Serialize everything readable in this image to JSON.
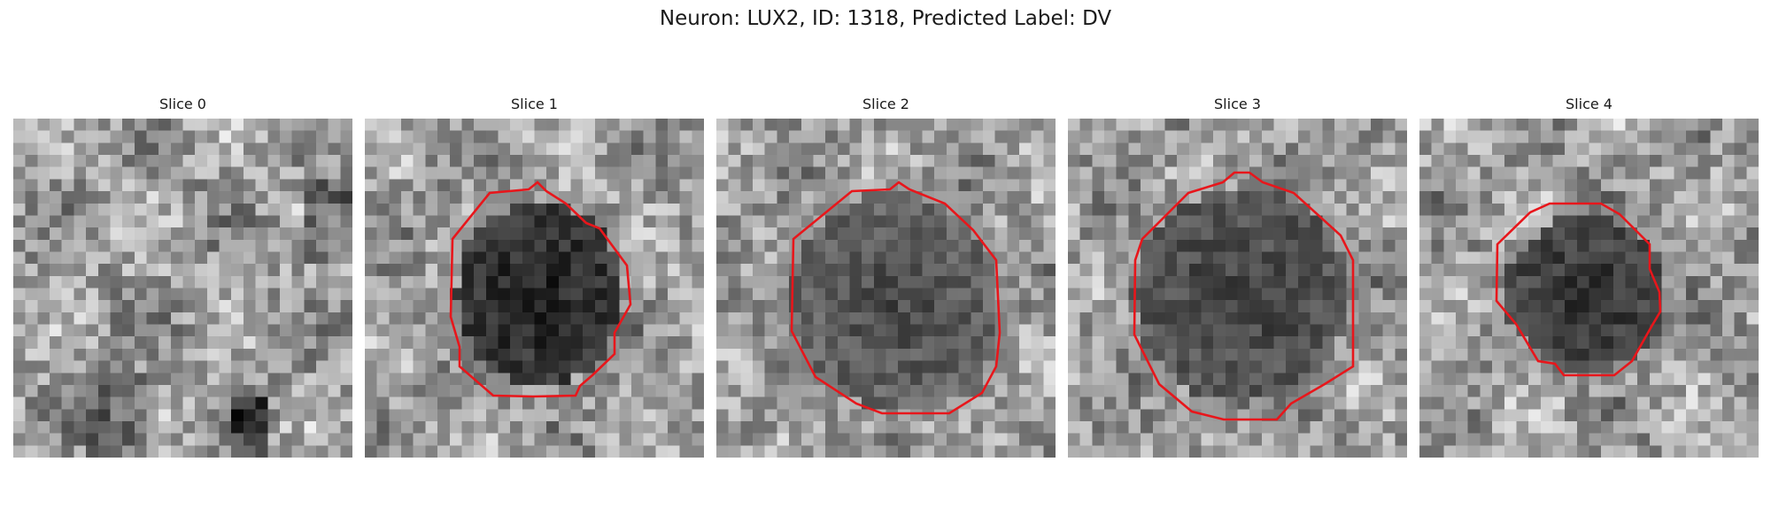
{
  "figure": {
    "title": "Neuron: LUX2, ID: 1318, Predicted Label: DV"
  },
  "panels": [
    {
      "title": "Slice 0",
      "has_contour": false
    },
    {
      "title": "Slice 1",
      "has_contour": true
    },
    {
      "title": "Slice 2",
      "has_contour": true
    },
    {
      "title": "Slice 3",
      "has_contour": true
    },
    {
      "title": "Slice 4",
      "has_contour": true
    }
  ],
  "colors": {
    "contour": "#e8161b",
    "background": "#ffffff"
  }
}
